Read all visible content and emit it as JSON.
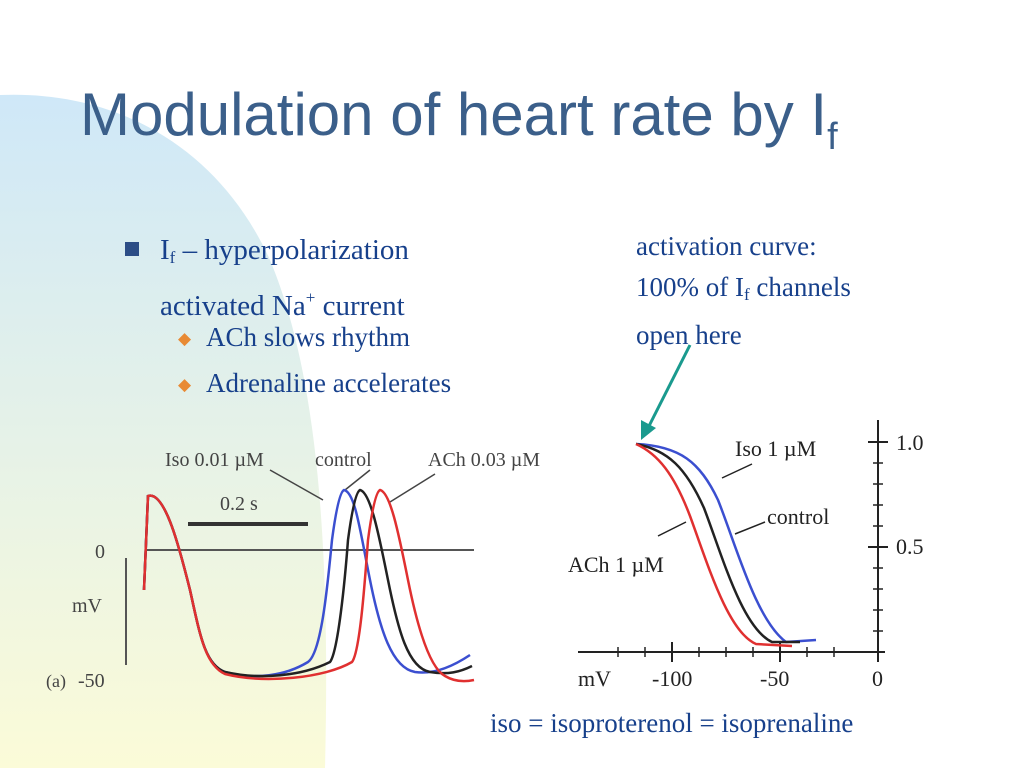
{
  "title": {
    "main": "Modulation of heart rate by I",
    "sub": "f"
  },
  "bullets": {
    "main": {
      "prefix": "I",
      "sub": "f",
      "line1_rest": " – hyperpolarization",
      "line2_a": "activated Na",
      "line2_sup": "+",
      "line2_b": " current"
    },
    "items": [
      {
        "label": "ACh slows rhythm"
      },
      {
        "label": "Adrenaline accelerates"
      }
    ]
  },
  "annotation": {
    "line1": "activation curve:",
    "line2_a": "100% of I",
    "line2_sub": "f",
    "line2_b": " channels",
    "line3": "open here"
  },
  "footnote": "iso = isoproterenol = isoprenaline",
  "colors": {
    "title": "#3b5f8a",
    "text": "#17408b",
    "bullet_square": "#2c4d86",
    "bullet_diamond": "#e88a34",
    "arrow": "#1a9a8e",
    "blob_top": "#cfe8f8",
    "blob_bottom": "#fbfbd8"
  },
  "figure_left": {
    "labels": {
      "iso": "Iso 0.01 µM",
      "control": "control",
      "ach": "ACh 0.03 µM",
      "scale": "0.2 s",
      "zero": "0",
      "unit": "mV",
      "panel": "(a)",
      "minus50": "-50"
    }
  },
  "figure_right": {
    "labels": {
      "iso": "Iso 1 µM",
      "control": "control",
      "ach": "ACh 1 µM",
      "y1": "1.0",
      "y05": "0.5",
      "x100": "-100",
      "x50": "-50",
      "x0": "0",
      "unit": "mV"
    }
  }
}
